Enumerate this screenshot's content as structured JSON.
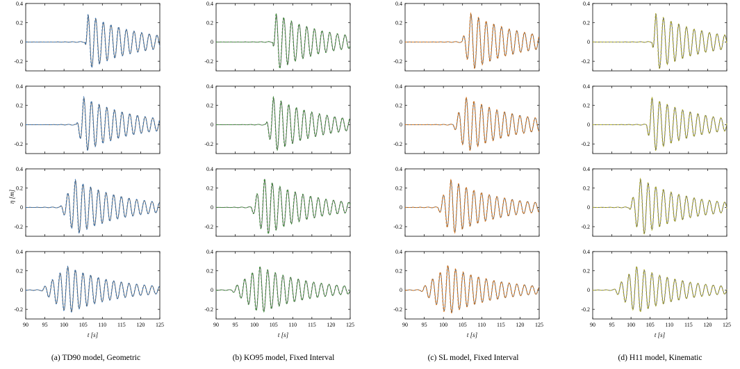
{
  "chart_data": {
    "type": "line",
    "title": "",
    "xlabel": "t [s]",
    "ylabel": "η [m]",
    "xlim": [
      90,
      125
    ],
    "ylim": [
      -0.3,
      0.4
    ],
    "xticks": [
      "90",
      "95",
      "100",
      "105",
      "110",
      "115",
      "120",
      "125"
    ],
    "yticks": [
      "-0.2",
      "0",
      "0.2",
      "0.4"
    ],
    "grid": false,
    "reference_color": "#444444",
    "panels": [
      {
        "caption": "(a) TD90 model, Geometric",
        "model_color": "#3b74b0",
        "rows": [
          {
            "onset": 105.5,
            "peak": 106.3,
            "amp": 0.28
          },
          {
            "onset": 103.3,
            "peak": 105.2,
            "amp": 0.28
          },
          {
            "onset": 99.0,
            "peak": 103.0,
            "amp": 0.28
          },
          {
            "onset": 94.0,
            "peak": 101.0,
            "amp": 0.24
          }
        ]
      },
      {
        "caption": "(b) KO95 model, Fixed Interval",
        "model_color": "#3f8f3a",
        "rows": [
          {
            "onset": 104.8,
            "peak": 105.7,
            "amp": 0.29
          },
          {
            "onset": 103.0,
            "peak": 105.0,
            "amp": 0.28
          },
          {
            "onset": 99.0,
            "peak": 102.7,
            "amp": 0.29
          },
          {
            "onset": 94.0,
            "peak": 101.5,
            "amp": 0.24
          }
        ]
      },
      {
        "caption": "(c) SL model, Fixed Interval",
        "model_color": "#e07b1f",
        "rows": [
          {
            "onset": 104.8,
            "peak": 107.2,
            "amp": 0.29
          },
          {
            "onset": 102.5,
            "peak": 106.0,
            "amp": 0.28
          },
          {
            "onset": 98.5,
            "peak": 102.0,
            "amp": 0.28
          },
          {
            "onset": 94.0,
            "peak": 101.2,
            "amp": 0.25
          }
        ]
      },
      {
        "caption": "(d) H11 model, Kinematic",
        "model_color": "#b3b12a",
        "rows": [
          {
            "onset": 105.5,
            "peak": 106.5,
            "amp": 0.29
          },
          {
            "onset": 104.0,
            "peak": 105.5,
            "amp": 0.28
          },
          {
            "onset": 99.5,
            "peak": 102.5,
            "amp": 0.29
          },
          {
            "onset": 95.5,
            "peak": 101.5,
            "amp": 0.24
          }
        ]
      }
    ]
  }
}
